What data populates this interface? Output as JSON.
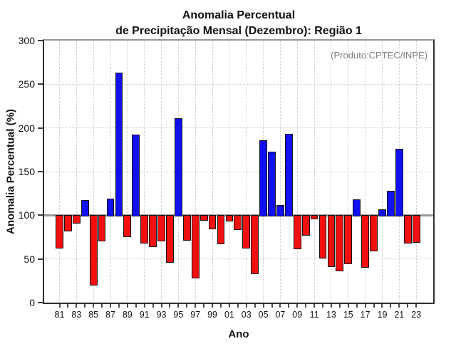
{
  "title": {
    "line1": "Anomalia Percentual",
    "line2": "de Precipitação Mensal (Dezembro): Região 1"
  },
  "annotation": {
    "produto": "(Produto:CPTEC/INPE)"
  },
  "y_axis": {
    "label": "Anomalia Percentual (%)",
    "ticks": [
      0,
      50,
      100,
      150,
      200,
      250,
      300
    ]
  },
  "x_axis": {
    "label": "Ano",
    "labeled_ticks": [
      "81",
      "83",
      "85",
      "87",
      "89",
      "91",
      "93",
      "95",
      "97",
      "99",
      "01",
      "03",
      "05",
      "07",
      "09",
      "11",
      "13",
      "15",
      "17",
      "19",
      "21",
      "23"
    ]
  },
  "colors": {
    "above_baseline": "#1010f0",
    "below_baseline": "#f01010",
    "baseline": "#979797",
    "grid": "#c9c9c9",
    "axis": "#2f2f2f",
    "annotation_gray": "#7e7e7e"
  },
  "chart_data": {
    "type": "bar",
    "title": "Anomalia Percentual de Precipitação Mensal (Dezembro): Região 1",
    "xlabel": "Ano",
    "ylabel": "Anomalia Percentual (%)",
    "ylim": [
      0,
      300
    ],
    "baseline": 100,
    "grid": "dotted",
    "legend": "none",
    "color_rule": "blue if value >= 100, red if value < 100",
    "categories": [
      "81",
      "82",
      "83",
      "84",
      "85",
      "86",
      "87",
      "88",
      "89",
      "90",
      "91",
      "92",
      "93",
      "94",
      "95",
      "96",
      "97",
      "98",
      "99",
      "00",
      "01",
      "02",
      "03",
      "04",
      "05",
      "06",
      "07",
      "08",
      "09",
      "10",
      "11",
      "12",
      "13",
      "14",
      "15",
      "16",
      "17",
      "18",
      "19",
      "20",
      "21",
      "22",
      "23"
    ],
    "values": [
      63,
      83,
      92,
      117,
      21,
      71,
      119,
      263,
      76,
      192,
      69,
      65,
      71,
      47,
      211,
      72,
      29,
      95,
      85,
      68,
      94,
      84,
      63,
      34,
      186,
      173,
      112,
      193,
      62,
      78,
      97,
      52,
      42,
      37,
      45,
      118,
      41,
      60,
      107,
      128,
      176,
      69,
      70
    ]
  }
}
